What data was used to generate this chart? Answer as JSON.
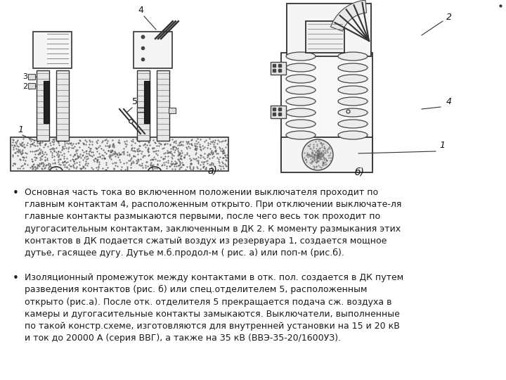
{
  "background_color": "#ffffff",
  "figure_width": 7.2,
  "figure_height": 5.4,
  "dpi": 100,
  "bullet1_parts": [
    {
      "text": "Основная часть тока во включенном положении выключателя проходит по\nглавным контактам ",
      "bold": false,
      "italic": false
    },
    {
      "text": "4",
      "bold": true,
      "italic": false
    },
    {
      "text": ", расположенным открыто. При отключении выключате-ля\nглавные контакты размыкаются первыми, после чего весь ток проходит по\nдугогасительным контактам, заключенным в ДК 2. К моменту размыкания этих\nконтактов в ДК подается сжатый воздух из резервуара 1, создается мощное\nдутье, гасящее дугу. Дутье м.б.продол-м ( ",
      "bold": false,
      "italic": false
    },
    {
      "text": "рис. а",
      "bold": false,
      "italic": true
    },
    {
      "text": ") или поп-м (",
      "bold": false,
      "italic": false
    },
    {
      "text": "рис.б",
      "bold": false,
      "italic": true
    },
    {
      "text": ").",
      "bold": false,
      "italic": false
    }
  ],
  "bullet1": "Основная часть тока во включенном положении выключателя проходит по\nглавным контактам 4, расположенным открыто. При отключении выключате-ля\nглавные контакты размыкаются первыми, после чего весь ток проходит по\nдугогасительным контактам, заключенным в ДК 2. К моменту размыкания этих\nконтактов в ДК подается сжатый воздух из резервуара 1, создается мощное\nдутье, гасящее дугу. Дутье м.б.продол-м ( рис. а) или поп-м (рис.б).",
  "bullet2": "Изоляционный промежуток между контактами в отк. пол. создается в ДК путем\nразведения контактов (рис. б) или спец.отделителем 5, расположенным\nоткрыто (рис.а). После отк. отделителя 5 прекращается подача сж. воздуха в\nкамеры и дугогасительные контакты замыкаются. Выключатели, выполненные\nпо такой констр.схеме, изготовляются для внутренней установки на 15 и 20 кВ\nи ток до 20000 А (серия ВВГ), а также на 35 кВ (ВВЭ-35-20/1600УЗ).",
  "text_font_size": 9.0,
  "text_color": "#1a1a1a"
}
